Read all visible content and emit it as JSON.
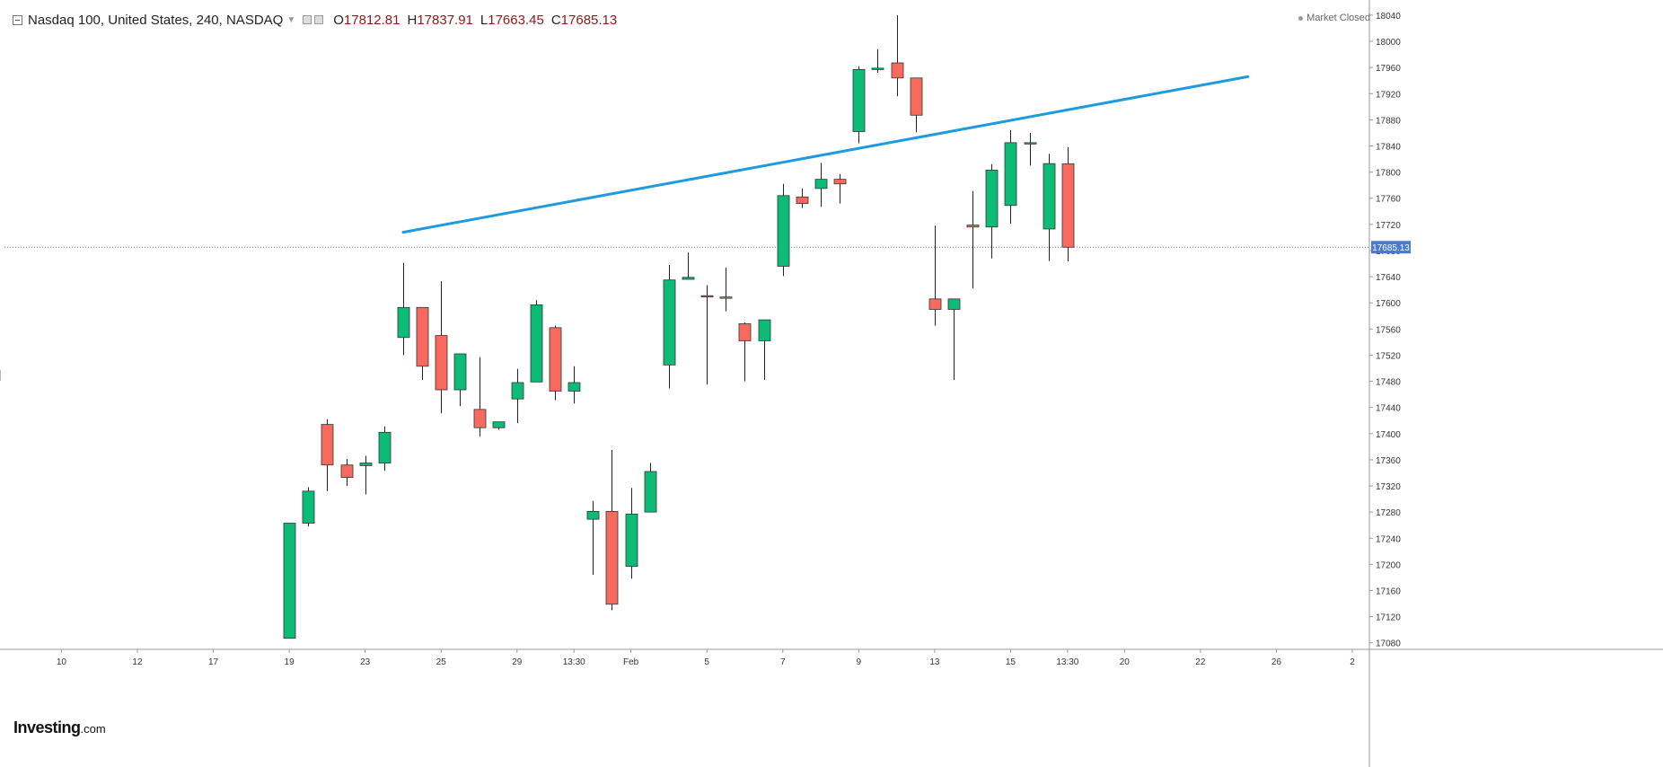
{
  "legend": {
    "symbol": "Nasdaq 100, United States, 240, NASDAQ",
    "open_label": "O",
    "open": "17812.81",
    "high_label": "H",
    "high": "17837.91",
    "low_label": "L",
    "low": "17663.45",
    "close_label": "C",
    "close": "17685.13"
  },
  "market_status": "Market Closed",
  "brand": {
    "main": "Investing",
    "sub": ".com"
  },
  "colors": {
    "up": "#0cbc76",
    "down": "#f76a5d",
    "trendline": "#1e9be0",
    "price_line": "#4a7bd0",
    "price_label_bg": "#4a7bd0",
    "axis_text": "#333333"
  },
  "chart_data": {
    "type": "candlestick",
    "title": "Nasdaq 100, United States, 240, NASDAQ",
    "y_ticks": [
      17080,
      17120,
      17160,
      17200,
      17240,
      17280,
      17320,
      17360,
      17400,
      17440,
      17480,
      17520,
      17560,
      17600,
      17640,
      17680,
      17720,
      17760,
      17800,
      17840,
      17880,
      17920,
      17960,
      18000,
      18040
    ],
    "ylim": [
      17070,
      18055
    ],
    "x_ticks": [
      {
        "label": "10",
        "x": 3
      },
      {
        "label": "12",
        "x": 7
      },
      {
        "label": "17",
        "x": 11
      },
      {
        "label": "19",
        "x": 15
      },
      {
        "label": "23",
        "x": 19
      },
      {
        "label": "25",
        "x": 23
      },
      {
        "label": "29",
        "x": 27
      },
      {
        "label": "13:30",
        "x": 30
      },
      {
        "label": "Feb",
        "x": 33
      },
      {
        "label": "5",
        "x": 37
      },
      {
        "label": "7",
        "x": 41
      },
      {
        "label": "9",
        "x": 45
      },
      {
        "label": "13",
        "x": 49
      },
      {
        "label": "15",
        "x": 53
      },
      {
        "label": "13:30",
        "x": 56
      },
      {
        "label": "20",
        "x": 59
      },
      {
        "label": "22",
        "x": 63
      },
      {
        "label": "26",
        "x": 67
      },
      {
        "label": "2",
        "x": 71
      }
    ],
    "xlim": [
      0,
      71.9
    ],
    "last_price": 17685.13,
    "last_price_label": "17685.13",
    "candles": [
      {
        "x": 15,
        "o": 17087,
        "h": 17263,
        "l": 17087,
        "c": 17263
      },
      {
        "x": 16,
        "o": 17263,
        "h": 17318,
        "l": 17258,
        "c": 17312
      },
      {
        "x": 17,
        "o": 17414,
        "h": 17422,
        "l": 17312,
        "c": 17352
      },
      {
        "x": 18,
        "o": 17352,
        "h": 17361,
        "l": 17320,
        "c": 17333
      },
      {
        "x": 19,
        "o": 17351,
        "h": 17366,
        "l": 17307,
        "c": 17355
      },
      {
        "x": 20,
        "o": 17355,
        "h": 17411,
        "l": 17343,
        "c": 17402
      },
      {
        "x": 21,
        "o": 17547,
        "h": 17661,
        "l": 17520,
        "c": 17593
      },
      {
        "x": 22,
        "o": 17593,
        "h": 17593,
        "l": 17482,
        "c": 17503
      },
      {
        "x": 23,
        "o": 17550,
        "h": 17633,
        "l": 17431,
        "c": 17467
      },
      {
        "x": 24,
        "o": 17467,
        "h": 17522,
        "l": 17442,
        "c": 17522
      },
      {
        "x": 25,
        "o": 17437,
        "h": 17517,
        "l": 17396,
        "c": 17409
      },
      {
        "x": 26,
        "o": 17409,
        "h": 17417,
        "l": 17406,
        "c": 17418
      },
      {
        "x": 27,
        "o": 17453,
        "h": 17499,
        "l": 17416,
        "c": 17478
      },
      {
        "x": 28,
        "o": 17479,
        "h": 17604,
        "l": 17479,
        "c": 17597
      },
      {
        "x": 29,
        "o": 17562,
        "h": 17565,
        "l": 17451,
        "c": 17465
      },
      {
        "x": 30,
        "o": 17465,
        "h": 17503,
        "l": 17446,
        "c": 17478
      },
      {
        "x": 31,
        "o": 17269,
        "h": 17297,
        "l": 17184,
        "c": 17281
      },
      {
        "x": 32,
        "o": 17281,
        "h": 17375,
        "l": 17130,
        "c": 17139
      },
      {
        "x": 33,
        "o": 17197,
        "h": 17317,
        "l": 17178,
        "c": 17277
      },
      {
        "x": 34,
        "o": 17280,
        "h": 17355,
        "l": 17280,
        "c": 17342
      },
      {
        "x": 35,
        "o": 17505,
        "h": 17658,
        "l": 17469,
        "c": 17635
      },
      {
        "x": 36,
        "o": 17636,
        "h": 17677,
        "l": 17636,
        "c": 17639
      },
      {
        "x": 37,
        "o": 17611,
        "h": 17627,
        "l": 17475,
        "c": 17609
      },
      {
        "x": 38,
        "o": 17609,
        "h": 17654,
        "l": 17587,
        "c": 17608
      },
      {
        "x": 39,
        "o": 17568,
        "h": 17570,
        "l": 17480,
        "c": 17542
      },
      {
        "x": 40,
        "o": 17542,
        "h": 17574,
        "l": 17482,
        "c": 17574
      },
      {
        "x": 41,
        "o": 17656,
        "h": 17782,
        "l": 17641,
        "c": 17764
      },
      {
        "x": 42,
        "o": 17762,
        "h": 17775,
        "l": 17745,
        "c": 17752
      },
      {
        "x": 43,
        "o": 17775,
        "h": 17814,
        "l": 17747,
        "c": 17789
      },
      {
        "x": 44,
        "o": 17789,
        "h": 17797,
        "l": 17752,
        "c": 17782
      },
      {
        "x": 45,
        "o": 17862,
        "h": 17962,
        "l": 17844,
        "c": 17957
      },
      {
        "x": 46,
        "o": 17957,
        "h": 17988,
        "l": 17952,
        "c": 17959
      },
      {
        "x": 47,
        "o": 17967,
        "h": 18040,
        "l": 17916,
        "c": 17944
      },
      {
        "x": 48,
        "o": 17944,
        "h": 17943,
        "l": 17861,
        "c": 17887
      },
      {
        "x": 49,
        "o": 17606,
        "h": 17718,
        "l": 17565,
        "c": 17590
      },
      {
        "x": 50,
        "o": 17590,
        "h": 17605,
        "l": 17482,
        "c": 17606
      },
      {
        "x": 51,
        "o": 17719,
        "h": 17771,
        "l": 17622,
        "c": 17716
      },
      {
        "x": 52,
        "o": 17716,
        "h": 17812,
        "l": 17668,
        "c": 17803
      },
      {
        "x": 53,
        "o": 17749,
        "h": 17864,
        "l": 17721,
        "c": 17845
      },
      {
        "x": 54,
        "o": 17845,
        "h": 17860,
        "l": 17810,
        "c": 17845
      },
      {
        "x": 55,
        "o": 17713,
        "h": 17828,
        "l": 17664,
        "c": 17813
      },
      {
        "x": 56,
        "o": 17812.81,
        "h": 17837.91,
        "l": 17663.45,
        "c": 17685.13
      }
    ],
    "trendlines": [
      {
        "x1": 21,
        "y1": 17708,
        "x2": 65.5,
        "y2": 17946
      }
    ]
  }
}
